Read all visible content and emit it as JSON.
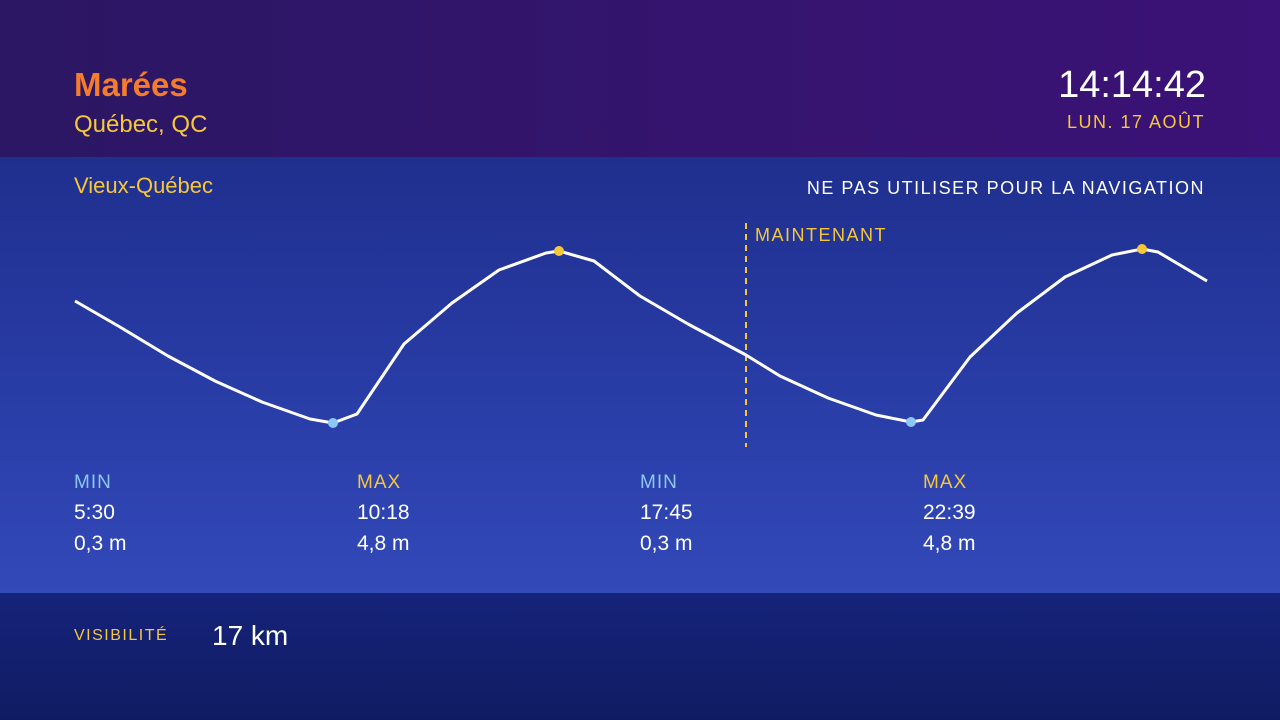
{
  "header": {
    "title": "Marées",
    "location": "Québec, QC",
    "time": "14:14:42",
    "date": "LUN. 17 AOÛT"
  },
  "station": "Vieux-Québec",
  "warning": "NE PAS UTILISER POUR LA NAVIGATION",
  "now_label": "MAINTENANT",
  "tides": [
    {
      "kind": "MIN",
      "time": "5:30",
      "height": "0,3 m"
    },
    {
      "kind": "MAX",
      "time": "10:18",
      "height": "4,8 m"
    },
    {
      "kind": "MIN",
      "time": "17:45",
      "height": "0,3 m"
    },
    {
      "kind": "MAX",
      "time": "22:39",
      "height": "4,8 m"
    }
  ],
  "footer": {
    "label": "VISIBILITÉ",
    "value": "17 km"
  }
}
